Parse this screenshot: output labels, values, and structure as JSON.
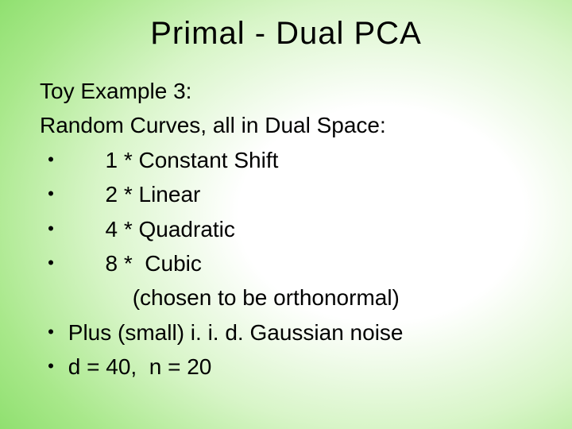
{
  "slide": {
    "title": "Primal - Dual PCA",
    "line1": "Toy Example 3:",
    "line2": "Random Curves, all in Dual Space:",
    "bullet1_num": "1",
    "bullet1_text": " * Constant Shift",
    "bullet2_num": "2",
    "bullet2_text": " * Linear",
    "bullet3_num": "4",
    "bullet3_text": " * Quadratic",
    "bullet4_num": "8",
    "bullet4_text": " *  Cubic",
    "paren": "(chosen to be orthonormal)",
    "bullet5": "Plus (small) i. i. d. Gaussian noise",
    "bullet6": "d = 40,  n = 20"
  },
  "style": {
    "title_fontsize": 40,
    "body_fontsize": 28,
    "text_color": "#000000",
    "bg_gradient_inner": "#ffffff",
    "bg_gradient_outer": "#90e070",
    "font_family": "MS PGothic, Arial, sans-serif"
  }
}
